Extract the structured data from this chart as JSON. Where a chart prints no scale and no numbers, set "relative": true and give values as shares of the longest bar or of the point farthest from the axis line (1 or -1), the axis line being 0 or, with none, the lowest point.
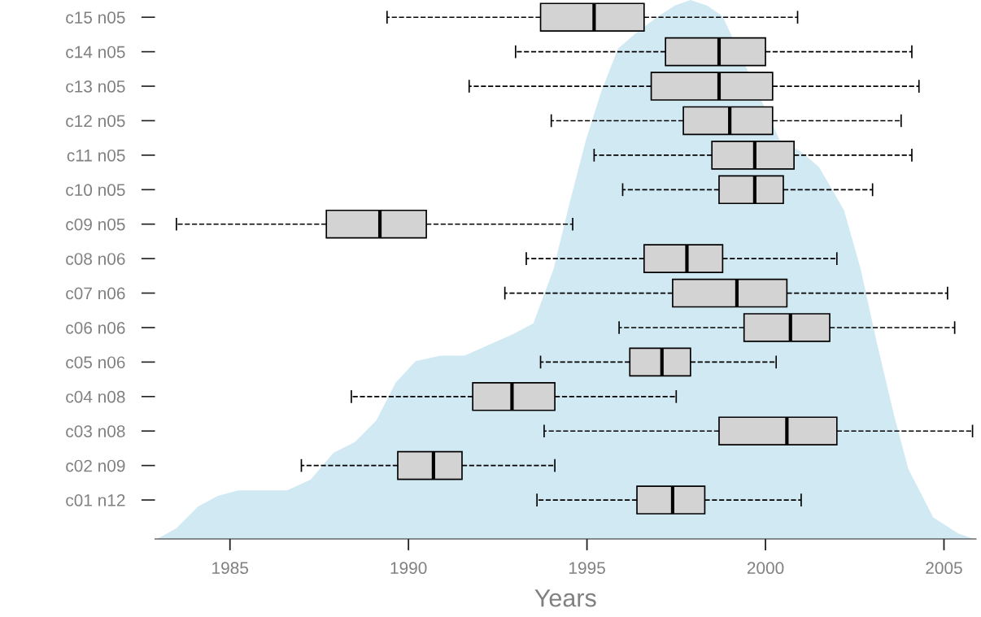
{
  "chart_data": [
    {
      "type": "area",
      "relative": true,
      "color": "#d0e9f3",
      "xlim": [
        1982.9,
        2005.9
      ],
      "x": [
        1982.96,
        1983.5,
        1984.1,
        1984.66,
        1985.23,
        1985.9,
        1986.6,
        1987.26,
        1987.9,
        1988.5,
        1989.1,
        1989.64,
        1990.2,
        1990.9,
        1991.57,
        1992.25,
        1992.93,
        1993.5,
        1994.06,
        1994.5,
        1994.97,
        1995.4,
        1995.87,
        1996.4,
        1997.0,
        1997.46,
        1997.9,
        1998.36,
        1998.8,
        2000.4,
        2000.97,
        2001.5,
        2002.2,
        2002.67,
        2003.1,
        2003.6,
        2004.0,
        2004.7,
        2005.4,
        2005.84
      ],
      "values": [
        0,
        0.02,
        0.06,
        0.08,
        0.09,
        0.09,
        0.09,
        0.11,
        0.16,
        0.18,
        0.22,
        0.29,
        0.33,
        0.34,
        0.34,
        0.36,
        0.38,
        0.4,
        0.5,
        0.62,
        0.74,
        0.83,
        0.91,
        0.94,
        0.97,
        0.99,
        1.0,
        0.99,
        0.97,
        0.74,
        0.72,
        0.69,
        0.61,
        0.5,
        0.37,
        0.23,
        0.13,
        0.04,
        0.01,
        0
      ]
    },
    {
      "type": "box",
      "orientation": "horizontal",
      "xlabel": "Years",
      "color": "#d3d3d3",
      "line_style": "dashed",
      "categories": [
        "c15 n05",
        "c14 n05",
        "c13 n05",
        "c12 n05",
        "c11 n05",
        "c10 n05",
        "c09 n05",
        "c08 n06",
        "c07 n06",
        "c06 n06",
        "c05 n06",
        "c04 n08",
        "c03 n08",
        "c02 n09",
        "c01 n12"
      ],
      "xlim": [
        1982.9,
        2005.9
      ],
      "xticks": [
        1985,
        1990,
        1995,
        2000,
        2005
      ],
      "grid": false,
      "boxes": [
        {
          "low": 1989.4,
          "q1": 1993.7,
          "median": 1995.2,
          "q3": 1996.6,
          "high": 2000.9
        },
        {
          "low": 1993.0,
          "q1": 1997.2,
          "median": 1998.7,
          "q3": 2000.0,
          "high": 2004.1
        },
        {
          "low": 1991.7,
          "q1": 1996.8,
          "median": 1998.7,
          "q3": 2000.2,
          "high": 2004.3
        },
        {
          "low": 1994.0,
          "q1": 1997.7,
          "median": 1999.0,
          "q3": 2000.2,
          "high": 2003.8
        },
        {
          "low": 1995.2,
          "q1": 1998.5,
          "median": 1999.7,
          "q3": 2000.8,
          "high": 2004.1
        },
        {
          "low": 1996.0,
          "q1": 1998.7,
          "median": 1999.7,
          "q3": 2000.5,
          "high": 2003.0
        },
        {
          "low": 1983.5,
          "q1": 1987.7,
          "median": 1989.2,
          "q3": 1990.5,
          "high": 1994.6
        },
        {
          "low": 1993.3,
          "q1": 1996.6,
          "median": 1997.8,
          "q3": 1998.8,
          "high": 2002.0
        },
        {
          "low": 1992.7,
          "q1": 1997.4,
          "median": 1999.2,
          "q3": 2000.6,
          "high": 2005.1
        },
        {
          "low": 1995.9,
          "q1": 1999.4,
          "median": 2000.7,
          "q3": 2001.8,
          "high": 2005.3
        },
        {
          "low": 1993.7,
          "q1": 1996.2,
          "median": 1997.1,
          "q3": 1997.9,
          "high": 2000.3
        },
        {
          "low": 1988.4,
          "q1": 1991.8,
          "median": 1992.9,
          "q3": 1994.1,
          "high": 1997.5
        },
        {
          "low": 1993.8,
          "q1": 1998.7,
          "median": 2000.6,
          "q3": 2002.0,
          "high": 2005.8
        },
        {
          "low": 1987.0,
          "q1": 1989.7,
          "median": 1990.7,
          "q3": 1991.5,
          "high": 1994.1
        },
        {
          "low": 1993.6,
          "q1": 1996.4,
          "median": 1997.4,
          "q3": 1998.3,
          "high": 2001.0
        }
      ]
    }
  ]
}
